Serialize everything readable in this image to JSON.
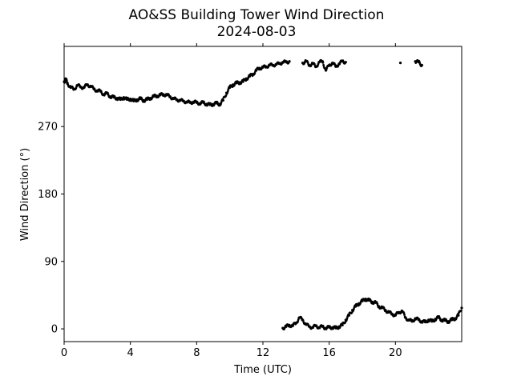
{
  "chart_data": {
    "type": "scatter",
    "title": "AO&SS Building Tower Wind Direction",
    "subtitle": "2024-08-03",
    "xlabel": "Time (UTC)",
    "ylabel": "Wind Direction (°)",
    "xlim": [
      0,
      24
    ],
    "ylim": [
      -17,
      377
    ],
    "x_ticks": [
      0,
      4,
      8,
      12,
      16,
      20
    ],
    "x_tick_labels": [
      "0",
      "4",
      "8",
      "12",
      "16",
      "20"
    ],
    "y_ticks": [
      0,
      90,
      180,
      270
    ],
    "y_tick_labels": [
      "0",
      "90",
      "180",
      "270"
    ],
    "grid": false,
    "legend": false,
    "marker_color": "#000000",
    "series": [
      {
        "values_note": "",
        "segments": [
          {
            "x": [
              0.0,
              0.1,
              0.2,
              0.4,
              0.6,
              0.8,
              1.0,
              1.2,
              1.4,
              1.6,
              1.8,
              2.0,
              2.2,
              2.4,
              2.6,
              2.8,
              3.0,
              3.2,
              3.4,
              3.6,
              3.8,
              4.0,
              4.2,
              4.4,
              4.6,
              4.8,
              5.0,
              5.2,
              5.4,
              5.6,
              5.8,
              6.0,
              6.2,
              6.4,
              6.6,
              6.8,
              7.0,
              7.2,
              7.4,
              7.6,
              7.8,
              8.0,
              8.2,
              8.4,
              8.6,
              8.8,
              9.0,
              9.2,
              9.4,
              9.6,
              9.8,
              10.0,
              10.2,
              10.4,
              10.6,
              10.8,
              11.0,
              11.2,
              11.4,
              11.6,
              11.8,
              12.0,
              12.2,
              12.4,
              12.6,
              12.8,
              13.0,
              13.2,
              13.4,
              13.6
            ],
            "y": [
              330,
              333,
              328,
              322,
              320,
              325,
              323,
              322,
              326,
              324,
              320,
              318,
              317,
              313,
              314,
              310,
              309,
              308,
              306,
              309,
              306,
              307,
              304,
              306,
              307,
              305,
              306,
              308,
              310,
              311,
              312,
              313,
              312,
              310,
              307,
              306,
              305,
              304,
              303,
              302,
              303,
              302,
              301,
              302,
              300,
              299,
              300,
              301,
              300,
              305,
              315,
              322,
              326,
              328,
              329,
              330,
              334,
              337,
              340,
              345,
              348,
              349,
              350,
              352,
              352,
              353,
              354,
              356,
              356,
              357
            ]
          },
          {
            "x": [
              14.4,
              14.6,
              14.8,
              15.0,
              15.2,
              15.4,
              15.6,
              15.8,
              16.0,
              16.2,
              16.4,
              16.6,
              16.8,
              17.0,
              20.3,
              21.2,
              21.4,
              21.6
            ],
            "y": [
              355,
              357,
              352,
              354,
              350,
              356,
              357,
              345,
              352,
              355,
              350,
              354,
              357,
              356,
              355,
              357,
              356,
              352
            ]
          },
          {
            "x": [
              13.2,
              13.4,
              13.6,
              13.8,
              14.0,
              14.2,
              14.4,
              14.6,
              14.8,
              15.0,
              15.2,
              15.4,
              15.6,
              15.8,
              16.0,
              16.2,
              16.4,
              16.6,
              16.8,
              17.0,
              17.2,
              17.4,
              17.6,
              17.8,
              18.0,
              18.2,
              18.4,
              18.6,
              18.8,
              19.0,
              19.2,
              19.4,
              19.6,
              19.8,
              20.0,
              20.2,
              20.4,
              20.6,
              20.8,
              21.0,
              21.2,
              21.4,
              21.6,
              21.8,
              22.0,
              22.2,
              22.4,
              22.6,
              22.8,
              23.0,
              23.2,
              23.4,
              23.6,
              23.8,
              24.0
            ],
            "y": [
              1,
              3,
              5,
              4,
              8,
              15,
              12,
              6,
              3,
              2,
              4,
              2,
              3,
              1,
              2,
              2,
              1,
              3,
              5,
              12,
              18,
              25,
              30,
              34,
              37,
              40,
              38,
              36,
              35,
              30,
              28,
              25,
              22,
              20,
              18,
              22,
              24,
              15,
              12,
              10,
              14,
              12,
              10,
              9,
              12,
              10,
              13,
              15,
              12,
              11,
              10,
              12,
              14,
              18,
              28
            ]
          }
        ]
      }
    ]
  }
}
